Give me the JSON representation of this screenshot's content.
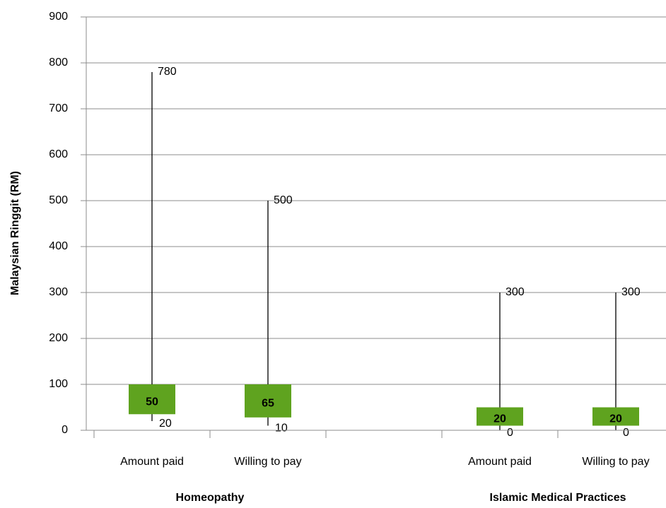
{
  "chart_data": {
    "type": "box",
    "y_label": "Malaysian Ringgit (RM)",
    "categories": [
      "Amount paid",
      "Willing to pay",
      null,
      "Amount paid",
      "Willing to pay"
    ],
    "groups": [
      {
        "name": "Homeopathy",
        "categories": [
          0,
          1
        ]
      },
      {
        "name": "Islamic Medical Practices",
        "categories": [
          3,
          4
        ]
      }
    ],
    "low": [
      20,
      10,
      null,
      0,
      0
    ],
    "box_low": [
      35,
      28,
      null,
      10,
      10
    ],
    "box_high": [
      100,
      100,
      null,
      50,
      50
    ],
    "high": [
      780,
      500,
      null,
      300,
      300
    ],
    "median": [
      50,
      65,
      null,
      20,
      20
    ],
    "box_color": "#5fa31f",
    "high_label_color": "#ff0000",
    "ylim": [
      0,
      900
    ],
    "yticks": [
      0,
      100,
      200,
      300,
      400,
      500,
      600,
      700,
      800,
      900
    ],
    "grid": true
  }
}
